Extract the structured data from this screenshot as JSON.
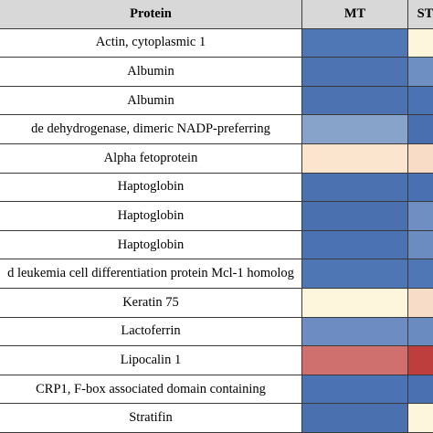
{
  "chart_data": {
    "type": "heatmap",
    "header": {
      "protein": "Protein",
      "columns": [
        "MT",
        "ST"
      ]
    },
    "rows": [
      {
        "protein": "Actin, cytoplasmic 1",
        "values": {
          "MT": "#4f76b5",
          "ST": "#fdf6dc"
        }
      },
      {
        "protein": "Albumin",
        "values": {
          "MT": "#4d73b2",
          "ST": "#6e8fc2"
        }
      },
      {
        "protein": "Albumin",
        "values": {
          "MT": "#4c72b1",
          "ST": "#4b72b2"
        }
      },
      {
        "protein": "de dehydrogenase, dimeric NADP-preferring",
        "values": {
          "MT": "#88a3c9",
          "ST": "#4a6fb0"
        }
      },
      {
        "protein": "Alpha fetoprotein",
        "values": {
          "MT": "#fbe5cf",
          "ST": "#f8dcc6"
        }
      },
      {
        "protein": "Haptoglobin",
        "values": {
          "MT": "#4b71b1",
          "ST": "#4a70b1"
        }
      },
      {
        "protein": "Haptoglobin",
        "values": {
          "MT": "#4a70b0",
          "ST": "#6f8fc3"
        }
      },
      {
        "protein": "Haptoglobin",
        "values": {
          "MT": "#4b72b2",
          "ST": "#6b8cc1"
        }
      },
      {
        "protein": "d leukemia cell differentiation protein Mcl-1 homolog",
        "values": {
          "MT": "#4e75b4",
          "ST": "#4f76b5"
        }
      },
      {
        "protein": "Keratin 75",
        "values": {
          "MT": "#fdf6dc",
          "ST": "#f7dcc8"
        }
      },
      {
        "protein": "Lactoferrin",
        "values": {
          "MT": "#6d8dc2",
          "ST": "#6a8bc0"
        }
      },
      {
        "protein": "Lipocalin 1",
        "values": {
          "MT": "#cf6f6e",
          "ST": "#be3e3e"
        }
      },
      {
        "protein": "CRP1, F-box associated domain containing",
        "values": {
          "MT": "#4b72b2",
          "ST": "#4a70b1"
        }
      },
      {
        "protein": "Stratifin",
        "values": {
          "MT": "#4a70b0",
          "ST": "#fdf6dc"
        }
      }
    ],
    "colors": {
      "header_bg": "#d8d8d8",
      "grid": "#3a3a3a",
      "low": "#4a70b0",
      "mid": "#fdf6dc",
      "high": "#be3e3e"
    },
    "title": "",
    "xlabel": "",
    "ylabel": "",
    "legend": "none"
  }
}
